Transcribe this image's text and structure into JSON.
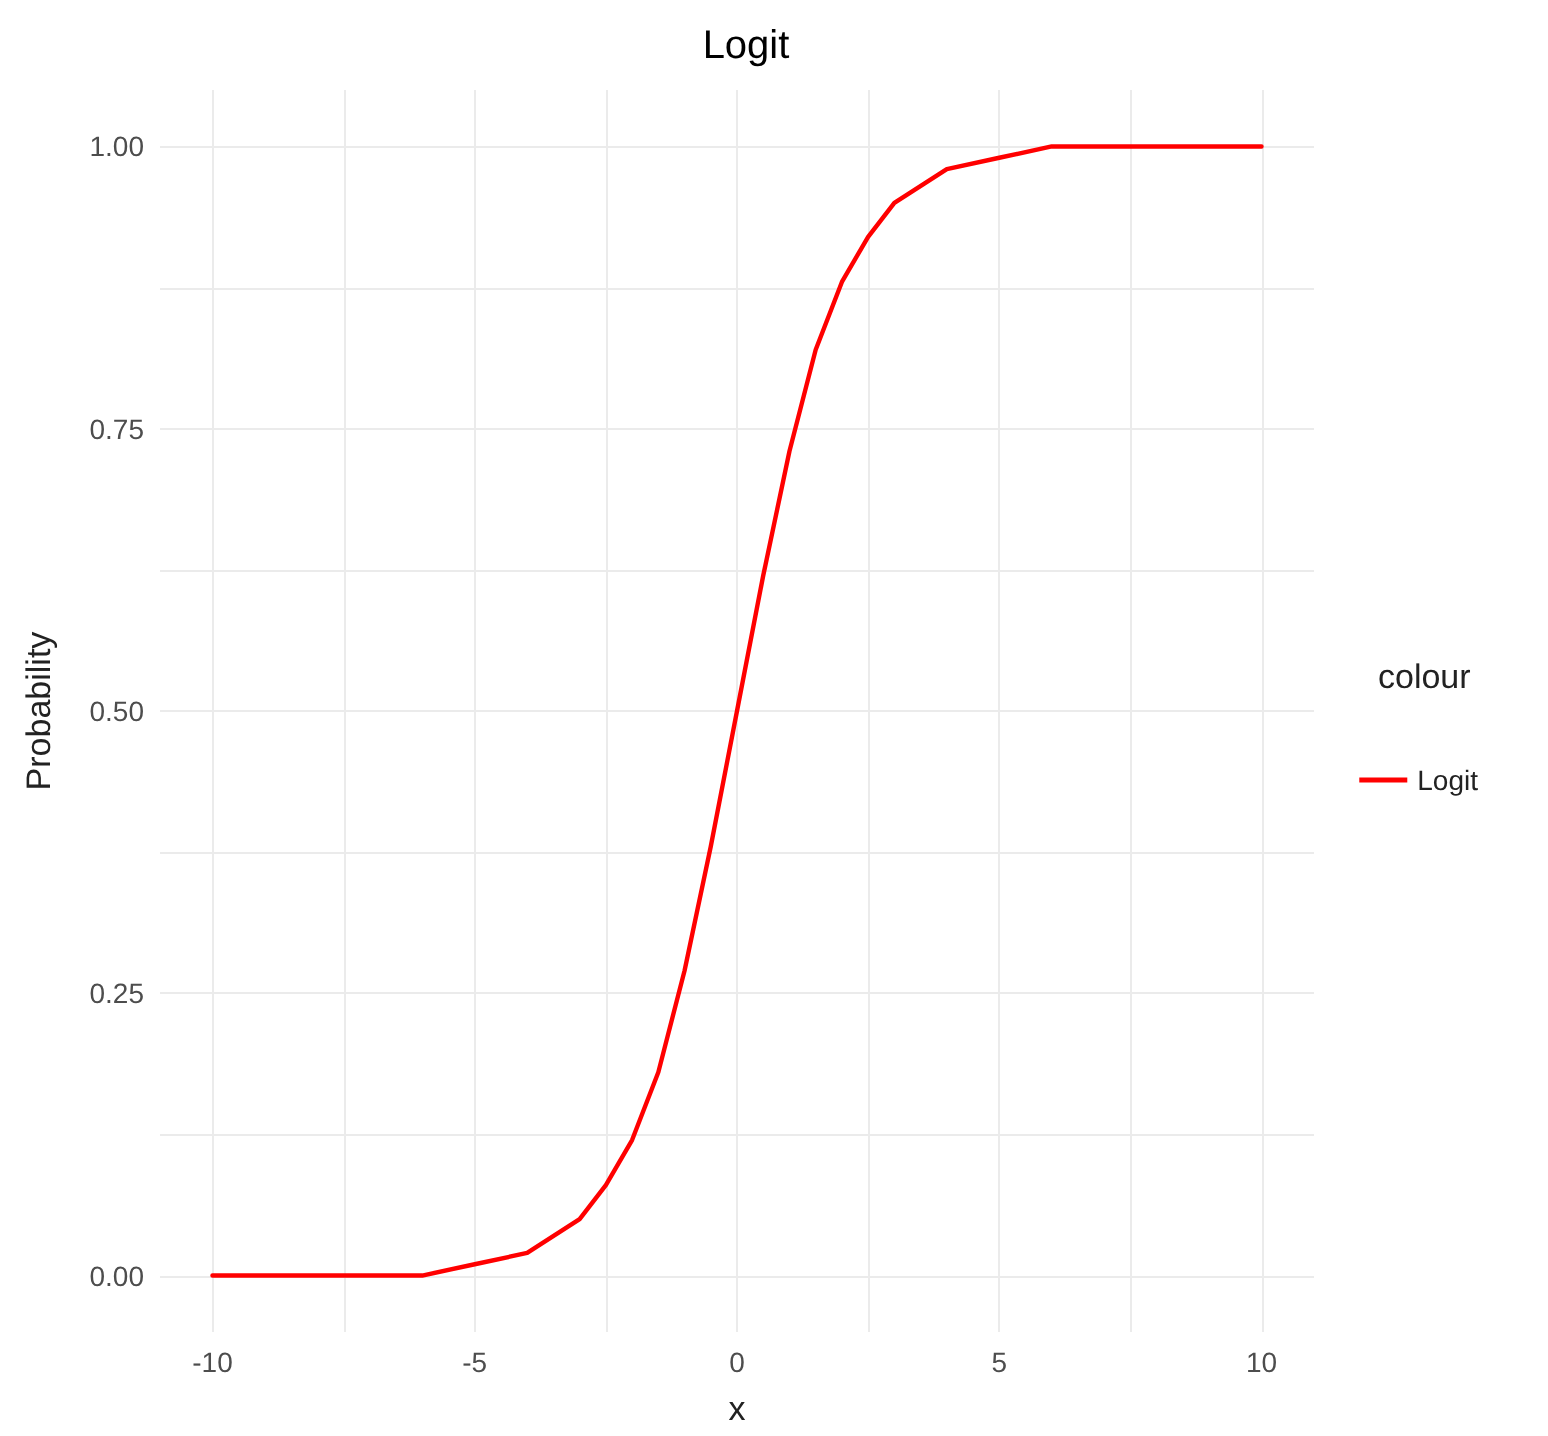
{
  "chart_data": {
    "type": "line",
    "title": "Logit",
    "xlabel": "x",
    "ylabel": "Probability",
    "legend_title": "colour",
    "x": [
      -10,
      -8,
      -6,
      -5,
      -4,
      -3,
      -2.5,
      -2,
      -1.5,
      -1,
      -0.5,
      0,
      0.5,
      1,
      1.5,
      2,
      2.5,
      3,
      4,
      5,
      6,
      8,
      10
    ],
    "series": [
      {
        "name": "Logit",
        "color": "#ff0000",
        "values": [
          0,
          0,
          0,
          0.01,
          0.02,
          0.05,
          0.08,
          0.12,
          0.18,
          0.27,
          0.38,
          0.5,
          0.62,
          0.73,
          0.82,
          0.88,
          0.92,
          0.95,
          0.98,
          0.99,
          1,
          1,
          1
        ]
      }
    ],
    "xlim": [
      -11,
      11
    ],
    "xticks": [
      -10,
      {
        "value": -7.5,
        "label": null
      },
      -5,
      {
        "value": -2.5,
        "label": null
      },
      0,
      {
        "value": 2.5,
        "label": null
      },
      5,
      {
        "value": 7.5,
        "label": null
      },
      10
    ],
    "ylim": [
      -0.05,
      1.05
    ],
    "yticks": [
      {
        "value": 0,
        "label": "0.00"
      },
      {
        "value": 0.125,
        "label": null
      },
      {
        "value": 0.25,
        "label": "0.25"
      },
      {
        "value": 0.375,
        "label": null
      },
      {
        "value": 0.5,
        "label": "0.50"
      },
      {
        "value": 0.625,
        "label": null
      },
      {
        "value": 0.75,
        "label": "0.75"
      },
      {
        "value": 0.875,
        "label": null
      },
      {
        "value": 1,
        "label": "1.00"
      }
    ],
    "grid": true,
    "legend": "right",
    "marker": "none",
    "line_style": "solid"
  }
}
